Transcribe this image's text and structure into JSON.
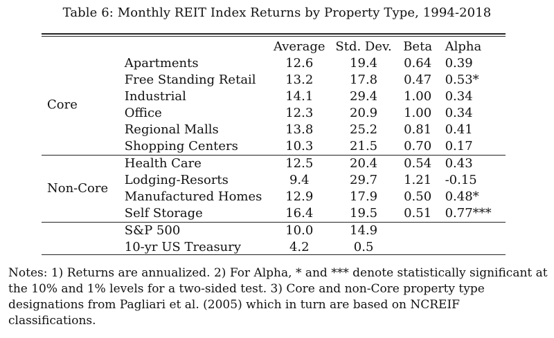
{
  "caption": "Table 6: Monthly REIT Index Returns by Property Type, 1994-2018",
  "columns": {
    "average": "Average",
    "std_dev": "Std. Dev.",
    "beta": "Beta",
    "alpha": "Alpha"
  },
  "groups": [
    {
      "label": "Core",
      "rows": [
        {
          "name": "Apartments",
          "average": "12.6",
          "std_dev": "19.4",
          "beta": "0.64",
          "alpha": "0.39"
        },
        {
          "name": "Free Standing Retail",
          "average": "13.2",
          "std_dev": "17.8",
          "beta": "0.47",
          "alpha": "0.53*"
        },
        {
          "name": "Industrial",
          "average": "14.1",
          "std_dev": "29.4",
          "beta": "1.00",
          "alpha": "0.34"
        },
        {
          "name": "Office",
          "average": "12.3",
          "std_dev": "20.9",
          "beta": "1.00",
          "alpha": "0.34"
        },
        {
          "name": "Regional Malls",
          "average": "13.8",
          "std_dev": "25.2",
          "beta": "0.81",
          "alpha": "0.41"
        },
        {
          "name": "Shopping Centers",
          "average": "10.3",
          "std_dev": "21.5",
          "beta": "0.70",
          "alpha": "0.17"
        }
      ]
    },
    {
      "label": "Non-Core",
      "rows": [
        {
          "name": "Health Care",
          "average": "12.5",
          "std_dev": "20.4",
          "beta": "0.54",
          "alpha": "0.43"
        },
        {
          "name": "Lodging-Resorts",
          "average": "9.4",
          "std_dev": "29.7",
          "beta": "1.21",
          "alpha": "-0.15"
        },
        {
          "name": "Manufactured Homes",
          "average": "12.9",
          "std_dev": "17.9",
          "beta": "0.50",
          "alpha": "0.48*"
        },
        {
          "name": "Self Storage",
          "average": "16.4",
          "std_dev": "19.5",
          "beta": "0.51",
          "alpha": "0.77***"
        }
      ]
    },
    {
      "label": "",
      "rows": [
        {
          "name": "S&P 500",
          "average": "10.0",
          "std_dev": "14.9",
          "beta": "",
          "alpha": ""
        },
        {
          "name": "10-yr US Treasury",
          "average": "4.2",
          "std_dev": "0.5",
          "beta": "",
          "alpha": ""
        }
      ]
    }
  ],
  "notes": "Notes: 1) Returns are annualized. 2) For Alpha, * and *** denote statistically significant at the 10% and 1% levels for a two-sided test. 3) Core and non-Core property type designations from Pagliari et al. (2005) which in turn are based on NCREIF classifications."
}
